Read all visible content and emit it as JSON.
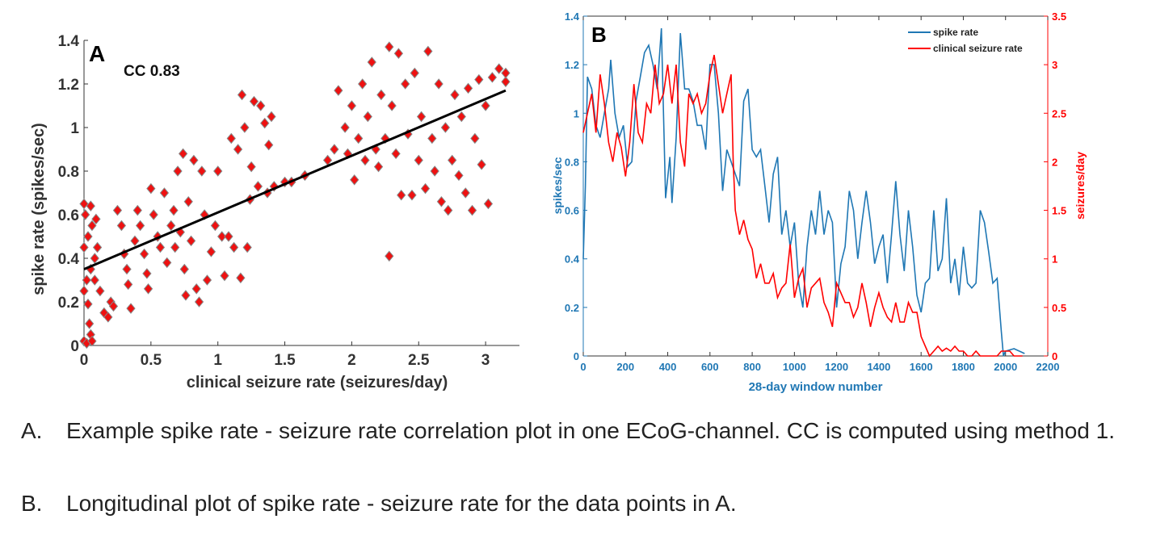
{
  "chart_data": [
    {
      "type": "scatter",
      "panel_label": "A",
      "annotation": "CC 0.83",
      "xlabel": "clinical seizure rate (seizures/day)",
      "ylabel": "spike rate (spikes/sec)",
      "xlim": [
        0,
        3.2
      ],
      "ylim": [
        0,
        1.4
      ],
      "xticks": [
        "0",
        "0.5",
        "1",
        "1.5",
        "2",
        "2.5",
        "3"
      ],
      "yticks": [
        "0",
        "0.2",
        "0.4",
        "0.6",
        "0.8",
        "1",
        "1.2",
        "1.4"
      ],
      "marker_color": "#ee1111",
      "marker_edge": "#888888",
      "fit_line": {
        "x": [
          0,
          3.15
        ],
        "y": [
          0.35,
          1.17
        ],
        "color": "#000000"
      },
      "points": [
        [
          0,
          0.02
        ],
        [
          0.02,
          0.01
        ],
        [
          0.05,
          0.05
        ],
        [
          0.04,
          0.1
        ],
        [
          0.06,
          0.02
        ],
        [
          0.03,
          0.19
        ],
        [
          0,
          0.25
        ],
        [
          0.02,
          0.3
        ],
        [
          0.05,
          0.35
        ],
        [
          0.08,
          0.4
        ],
        [
          0,
          0.45
        ],
        [
          0.03,
          0.5
        ],
        [
          0.06,
          0.55
        ],
        [
          0.01,
          0.6
        ],
        [
          0.05,
          0.64
        ],
        [
          0,
          0.65
        ],
        [
          0.09,
          0.58
        ],
        [
          0.1,
          0.45
        ],
        [
          0.08,
          0.3
        ],
        [
          0.12,
          0.25
        ],
        [
          0.15,
          0.15
        ],
        [
          0.18,
          0.13
        ],
        [
          0.2,
          0.2
        ],
        [
          0.22,
          0.18
        ],
        [
          0.25,
          0.62
        ],
        [
          0.28,
          0.55
        ],
        [
          0.3,
          0.42
        ],
        [
          0.32,
          0.35
        ],
        [
          0.33,
          0.28
        ],
        [
          0.35,
          0.17
        ],
        [
          0.38,
          0.48
        ],
        [
          0.4,
          0.62
        ],
        [
          0.42,
          0.55
        ],
        [
          0.45,
          0.42
        ],
        [
          0.47,
          0.33
        ],
        [
          0.48,
          0.26
        ],
        [
          0.5,
          0.72
        ],
        [
          0.52,
          0.6
        ],
        [
          0.55,
          0.5
        ],
        [
          0.57,
          0.45
        ],
        [
          0.6,
          0.7
        ],
        [
          0.62,
          0.38
        ],
        [
          0.65,
          0.55
        ],
        [
          0.67,
          0.62
        ],
        [
          0.68,
          0.45
        ],
        [
          0.7,
          0.8
        ],
        [
          0.72,
          0.52
        ],
        [
          0.74,
          0.88
        ],
        [
          0.75,
          0.35
        ],
        [
          0.76,
          0.23
        ],
        [
          0.78,
          0.66
        ],
        [
          0.8,
          0.48
        ],
        [
          0.82,
          0.85
        ],
        [
          0.84,
          0.26
        ],
        [
          0.86,
          0.2
        ],
        [
          0.88,
          0.8
        ],
        [
          0.9,
          0.6
        ],
        [
          0.92,
          0.3
        ],
        [
          0.95,
          0.43
        ],
        [
          0.98,
          0.55
        ],
        [
          1.0,
          0.8
        ],
        [
          1.03,
          0.5
        ],
        [
          1.05,
          0.32
        ],
        [
          1.08,
          0.5
        ],
        [
          1.1,
          0.95
        ],
        [
          1.12,
          0.45
        ],
        [
          1.15,
          0.9
        ],
        [
          1.17,
          0.31
        ],
        [
          1.18,
          1.15
        ],
        [
          1.2,
          1.0
        ],
        [
          1.22,
          0.45
        ],
        [
          1.24,
          0.67
        ],
        [
          1.25,
          0.82
        ],
        [
          1.27,
          1.12
        ],
        [
          1.3,
          0.73
        ],
        [
          1.32,
          1.1
        ],
        [
          1.35,
          1.02
        ],
        [
          1.37,
          0.7
        ],
        [
          1.38,
          0.92
        ],
        [
          1.4,
          1.05
        ],
        [
          1.42,
          0.73
        ],
        [
          1.5,
          0.75
        ],
        [
          1.55,
          0.75
        ],
        [
          1.65,
          0.78
        ],
        [
          1.82,
          0.85
        ],
        [
          1.87,
          0.9
        ],
        [
          1.9,
          1.17
        ],
        [
          1.95,
          1.0
        ],
        [
          1.97,
          0.88
        ],
        [
          2.0,
          1.1
        ],
        [
          2.02,
          0.76
        ],
        [
          2.05,
          0.95
        ],
        [
          2.08,
          1.2
        ],
        [
          2.1,
          0.85
        ],
        [
          2.12,
          1.05
        ],
        [
          2.15,
          1.3
        ],
        [
          2.18,
          0.9
        ],
        [
          2.2,
          0.82
        ],
        [
          2.22,
          1.15
        ],
        [
          2.25,
          0.95
        ],
        [
          2.28,
          0.41
        ],
        [
          2.28,
          1.37
        ],
        [
          2.3,
          1.1
        ],
        [
          2.33,
          0.88
        ],
        [
          2.35,
          1.34
        ],
        [
          2.37,
          0.69
        ],
        [
          2.4,
          1.2
        ],
        [
          2.42,
          0.97
        ],
        [
          2.45,
          0.69
        ],
        [
          2.47,
          1.25
        ],
        [
          2.5,
          0.85
        ],
        [
          2.52,
          1.05
        ],
        [
          2.55,
          0.72
        ],
        [
          2.57,
          1.35
        ],
        [
          2.6,
          0.95
        ],
        [
          2.62,
          0.8
        ],
        [
          2.65,
          1.2
        ],
        [
          2.67,
          0.66
        ],
        [
          2.7,
          1.0
        ],
        [
          2.72,
          0.62
        ],
        [
          2.75,
          0.85
        ],
        [
          2.77,
          1.15
        ],
        [
          2.8,
          0.78
        ],
        [
          2.82,
          1.05
        ],
        [
          2.85,
          0.7
        ],
        [
          2.87,
          1.18
        ],
        [
          2.9,
          0.62
        ],
        [
          2.92,
          0.95
        ],
        [
          2.95,
          1.22
        ],
        [
          2.97,
          0.83
        ],
        [
          3.0,
          1.1
        ],
        [
          3.02,
          0.65
        ],
        [
          3.05,
          1.23
        ],
        [
          3.1,
          1.27
        ],
        [
          3.15,
          1.21
        ],
        [
          3.15,
          1.25
        ]
      ]
    },
    {
      "type": "line",
      "panel_label": "B",
      "xlabel": "28-day window number",
      "ylabel_left": "spikes/sec",
      "ylabel_right": "seizures/day",
      "xlim": [
        0,
        2200
      ],
      "ylim_left": [
        0,
        1.4
      ],
      "ylim_right": [
        0,
        3.5
      ],
      "xticks": [
        "0",
        "200",
        "400",
        "600",
        "800",
        "1000",
        "1200",
        "1400",
        "1600",
        "1800",
        "2000",
        "2200"
      ],
      "yticks_left": [
        "0",
        "0.2",
        "0.4",
        "0.6",
        "0.8",
        "1",
        "1.2",
        "1.4"
      ],
      "yticks_right": [
        "0",
        "0.5",
        "1",
        "1.5",
        "2",
        "2.5",
        "3",
        "3.5"
      ],
      "legend_position": "top-right",
      "series": [
        {
          "name": "spike rate",
          "axis": "left",
          "color": "#1f77b4",
          "x": [
            0,
            10,
            20,
            40,
            60,
            80,
            100,
            120,
            130,
            150,
            170,
            190,
            210,
            230,
            250,
            270,
            290,
            310,
            330,
            350,
            370,
            390,
            410,
            420,
            440,
            460,
            480,
            500,
            520,
            540,
            560,
            580,
            600,
            620,
            640,
            660,
            680,
            700,
            720,
            740,
            760,
            780,
            800,
            820,
            840,
            860,
            880,
            900,
            920,
            940,
            960,
            980,
            1000,
            1020,
            1040,
            1060,
            1080,
            1100,
            1120,
            1140,
            1160,
            1180,
            1200,
            1220,
            1240,
            1260,
            1280,
            1300,
            1320,
            1340,
            1360,
            1380,
            1400,
            1420,
            1440,
            1460,
            1480,
            1500,
            1520,
            1540,
            1560,
            1580,
            1600,
            1620,
            1640,
            1660,
            1680,
            1700,
            1720,
            1740,
            1760,
            1780,
            1800,
            1820,
            1840,
            1860,
            1880,
            1900,
            1920,
            1940,
            1960,
            1980,
            1990,
            2000,
            2040,
            2090
          ],
          "y": [
            0.4,
            0.7,
            1.15,
            1.1,
            0.95,
            0.9,
            1.0,
            1.1,
            1.22,
            1.0,
            0.9,
            0.95,
            0.78,
            0.8,
            1.05,
            1.15,
            1.25,
            1.28,
            1.2,
            1.1,
            1.35,
            0.65,
            0.82,
            0.63,
            0.9,
            1.33,
            1.1,
            1.1,
            1.05,
            0.95,
            0.95,
            0.85,
            1.2,
            1.2,
            1.0,
            0.68,
            0.85,
            0.8,
            0.75,
            0.7,
            1.05,
            1.1,
            0.85,
            0.82,
            0.85,
            0.7,
            0.55,
            0.75,
            0.82,
            0.5,
            0.6,
            0.45,
            0.55,
            0.3,
            0.2,
            0.45,
            0.6,
            0.5,
            0.68,
            0.5,
            0.6,
            0.55,
            0.2,
            0.38,
            0.45,
            0.68,
            0.6,
            0.4,
            0.55,
            0.68,
            0.55,
            0.38,
            0.45,
            0.5,
            0.3,
            0.5,
            0.72,
            0.5,
            0.35,
            0.6,
            0.45,
            0.25,
            0.18,
            0.3,
            0.32,
            0.6,
            0.35,
            0.4,
            0.65,
            0.3,
            0.4,
            0.25,
            0.45,
            0.3,
            0.28,
            0.3,
            0.6,
            0.55,
            0.43,
            0.3,
            0.32,
            0.1,
            0.0,
            0.02,
            0.03,
            0.01
          ]
        },
        {
          "name": "clinical seizure rate",
          "axis": "right",
          "color": "#ff0000",
          "x": [
            0,
            20,
            40,
            60,
            80,
            100,
            120,
            140,
            160,
            180,
            200,
            220,
            240,
            260,
            280,
            300,
            320,
            340,
            360,
            380,
            400,
            420,
            440,
            460,
            480,
            500,
            520,
            540,
            560,
            580,
            600,
            620,
            640,
            660,
            680,
            700,
            710,
            720,
            740,
            760,
            780,
            800,
            820,
            840,
            860,
            880,
            900,
            920,
            940,
            960,
            980,
            1000,
            1020,
            1040,
            1060,
            1080,
            1100,
            1120,
            1140,
            1160,
            1180,
            1200,
            1220,
            1240,
            1260,
            1280,
            1300,
            1320,
            1340,
            1360,
            1380,
            1400,
            1420,
            1440,
            1460,
            1480,
            1500,
            1520,
            1540,
            1560,
            1580,
            1600,
            1620,
            1640,
            1660,
            1680,
            1700,
            1720,
            1740,
            1760,
            1780,
            1800,
            1820,
            1840,
            1860,
            1880,
            1900,
            1920,
            1940,
            1960,
            1980,
            2000,
            2020,
            2040,
            2080
          ],
          "y": [
            2.3,
            2.5,
            2.7,
            2.3,
            2.9,
            2.6,
            2.2,
            2.0,
            2.3,
            2.15,
            1.85,
            2.2,
            2.8,
            2.3,
            2.2,
            2.6,
            2.5,
            3.0,
            2.6,
            2.7,
            3.0,
            2.6,
            3.0,
            2.2,
            1.95,
            2.7,
            2.6,
            2.7,
            2.5,
            2.6,
            2.9,
            3.1,
            2.8,
            2.5,
            2.7,
            2.9,
            2.0,
            1.5,
            1.25,
            1.4,
            1.2,
            1.1,
            0.8,
            0.95,
            0.75,
            0.75,
            0.85,
            0.6,
            0.7,
            0.75,
            1.15,
            0.6,
            0.8,
            0.9,
            0.5,
            0.7,
            0.75,
            0.8,
            0.55,
            0.45,
            0.3,
            0.75,
            0.65,
            0.55,
            0.55,
            0.4,
            0.5,
            0.75,
            0.55,
            0.3,
            0.5,
            0.65,
            0.5,
            0.4,
            0.35,
            0.55,
            0.35,
            0.35,
            0.55,
            0.45,
            0.45,
            0.2,
            0.1,
            0.0,
            0.05,
            0.1,
            0.05,
            0.08,
            0.05,
            0.1,
            0.05,
            0.05,
            0.0,
            0.0,
            0.05,
            0.0,
            0.0,
            0.0,
            0.0,
            0.0,
            0.05,
            0.05,
            0.05,
            0.0,
            0.0
          ]
        }
      ]
    }
  ],
  "caption": [
    {
      "label": "A.",
      "text": "Example spike rate - seizure rate correlation plot in one ECoG-channel. CC is computed using method 1."
    },
    {
      "label": "B.",
      "text": "Longitudinal plot of spike rate - seizure rate for the data points in A."
    }
  ]
}
